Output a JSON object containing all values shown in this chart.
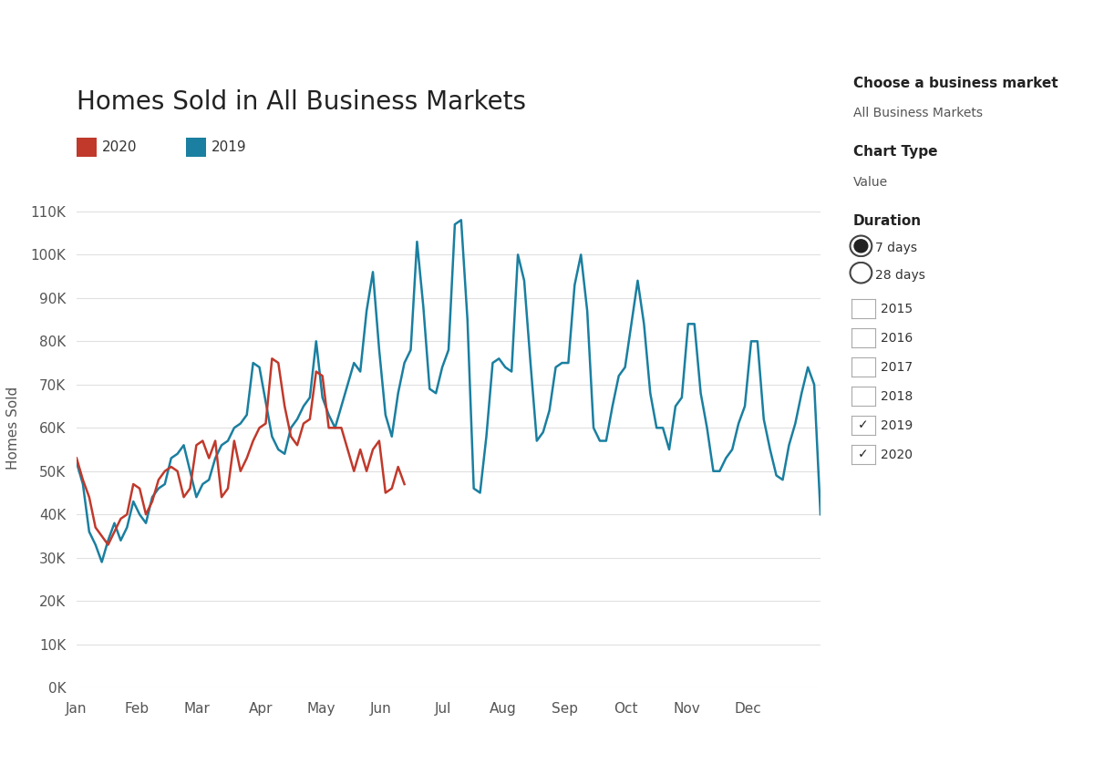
{
  "title": "Homes Sold in All Business Markets",
  "ylabel": "Homes Sold",
  "bg_color": "#ffffff",
  "plot_bg_color": "#ffffff",
  "grid_color": "#e0e0e0",
  "color_2019": "#1a7fa0",
  "color_2020": "#c0392b",
  "ylim": [
    0,
    120000
  ],
  "yticks": [
    0,
    10000,
    20000,
    30000,
    40000,
    50000,
    60000,
    70000,
    80000,
    90000,
    100000,
    110000
  ],
  "ytick_labels": [
    "0K",
    "10K",
    "20K",
    "30K",
    "40K",
    "50K",
    "60K",
    "70K",
    "80K",
    "90K",
    "100K",
    "110K"
  ],
  "month_labels": [
    "Jan",
    "Feb",
    "Mar",
    "Apr",
    "May",
    "Jun",
    "Jul",
    "Aug",
    "Sep",
    "Oct",
    "Nov",
    "Dec"
  ],
  "right_panel_title1": "Choose a business market",
  "right_panel_sub1": "All Business Markets",
  "right_panel_title2": "Chart Type",
  "right_panel_sub2": "Value",
  "right_panel_title3": "Duration",
  "duration_options": [
    "7 days",
    "28 days"
  ],
  "year_checkboxes": [
    "2015",
    "2016",
    "2017",
    "2018",
    "2019",
    "2020"
  ],
  "year_checked": [
    false,
    false,
    false,
    false,
    true,
    true
  ],
  "data_2019": [
    52000,
    47000,
    36000,
    33000,
    29000,
    34000,
    38000,
    34000,
    37000,
    43000,
    40000,
    38000,
    44000,
    46000,
    47000,
    53000,
    54000,
    56000,
    50000,
    44000,
    47000,
    48000,
    53000,
    56000,
    57000,
    60000,
    61000,
    63000,
    75000,
    74000,
    66000,
    58000,
    55000,
    54000,
    60000,
    62000,
    65000,
    67000,
    80000,
    67000,
    63000,
    60000,
    65000,
    70000,
    75000,
    73000,
    87000,
    96000,
    78000,
    63000,
    58000,
    68000,
    75000,
    78000,
    103000,
    88000,
    69000,
    68000,
    74000,
    78000,
    107000,
    108000,
    85000,
    46000,
    45000,
    58000,
    75000,
    76000,
    74000,
    73000,
    100000,
    94000,
    75000,
    57000,
    59000,
    64000,
    74000,
    75000,
    75000,
    93000,
    100000,
    87000,
    60000,
    57000,
    57000,
    65000,
    72000,
    74000,
    84000,
    94000,
    84000,
    68000,
    60000,
    60000,
    55000,
    65000,
    67000,
    84000,
    84000,
    68000,
    60000,
    50000,
    50000,
    53000,
    55000,
    61000,
    65000,
    80000,
    80000,
    62000,
    55000,
    49000,
    48000,
    56000,
    61000,
    68000,
    74000,
    70000,
    40000
  ],
  "data_2019_x": [
    0,
    1,
    2,
    3,
    4,
    5,
    6,
    7,
    8,
    9,
    10,
    11,
    12,
    13,
    14,
    15,
    16,
    17,
    18,
    19,
    20,
    21,
    22,
    23,
    24,
    25,
    26,
    27,
    28,
    29,
    30,
    31,
    32,
    33,
    34,
    35,
    36,
    37,
    38,
    39,
    40,
    41,
    42,
    43,
    44,
    45,
    46,
    47,
    48,
    49,
    50,
    51,
    52,
    53,
    54,
    55,
    56,
    57,
    58,
    59,
    60,
    61,
    62,
    63,
    64,
    65,
    66,
    67,
    68,
    69,
    70,
    71,
    72,
    73,
    74,
    75,
    76,
    77,
    78,
    79,
    80,
    81,
    82,
    83,
    84,
    85,
    86,
    87,
    88,
    89,
    90,
    91,
    92,
    93,
    94,
    95,
    96,
    97,
    98,
    99,
    100,
    101,
    102,
    103,
    104,
    105,
    106,
    107,
    108,
    109,
    110,
    111,
    112,
    113,
    114,
    115,
    116,
    117,
    118
  ],
  "data_2020": [
    53000,
    48000,
    44000,
    37000,
    35000,
    33000,
    36000,
    39000,
    40000,
    47000,
    46000,
    40000,
    43000,
    48000,
    50000,
    51000,
    50000,
    44000,
    46000,
    56000,
    57000,
    53000,
    57000,
    44000,
    46000,
    57000,
    50000,
    53000,
    57000,
    60000,
    61000,
    76000,
    75000,
    65000,
    58000,
    56000,
    61000,
    62000,
    73000,
    72000,
    60000,
    60000,
    60000,
    55000,
    50000,
    55000,
    50000,
    55000,
    57000,
    45000,
    46000,
    51000,
    47000
  ],
  "data_2020_x": [
    0,
    1,
    2,
    3,
    4,
    5,
    6,
    7,
    8,
    9,
    10,
    11,
    12,
    13,
    14,
    15,
    16,
    17,
    18,
    19,
    20,
    21,
    22,
    23,
    24,
    25,
    26,
    27,
    28,
    29,
    30,
    31,
    32,
    33,
    34,
    35,
    36,
    37,
    38,
    39,
    40,
    41,
    42,
    43,
    44,
    45,
    46,
    47,
    48,
    49,
    50,
    51,
    52
  ]
}
